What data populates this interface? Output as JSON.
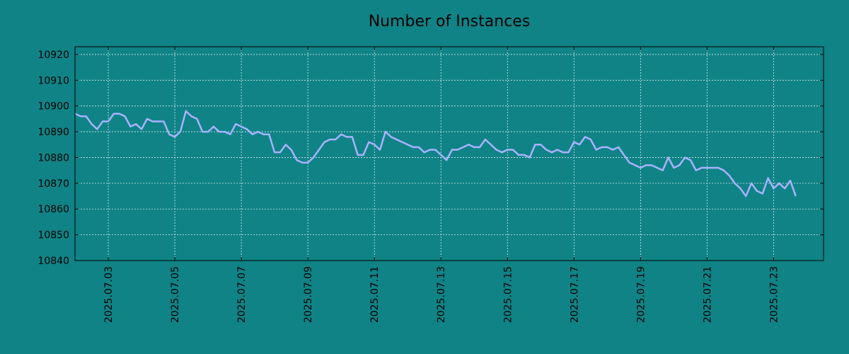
{
  "chart_data": {
    "type": "line",
    "title": "Number of Instances",
    "xlabel": "",
    "ylabel": "",
    "ylim": [
      10840,
      10923
    ],
    "xlim": [
      "2025.07.02 00:00",
      "2025.07.24 12:00"
    ],
    "grid": true,
    "yticks": [
      10840,
      10850,
      10860,
      10870,
      10880,
      10890,
      10900,
      10910,
      10920
    ],
    "xticks": [
      "2025.07.03",
      "2025.07.05",
      "2025.07.07",
      "2025.07.09",
      "2025.07.11",
      "2025.07.13",
      "2025.07.15",
      "2025.07.17",
      "2025.07.19",
      "2025.07.21",
      "2025.07.23"
    ],
    "series": [
      {
        "color": "#a7b3ff",
        "points": [
          [
            "2025.07.02 00:00",
            10897
          ],
          [
            "2025.07.02 04:00",
            10896
          ],
          [
            "2025.07.02 08:00",
            10896
          ],
          [
            "2025.07.02 12:00",
            10893
          ],
          [
            "2025.07.02 16:00",
            10891
          ],
          [
            "2025.07.02 20:00",
            10894
          ],
          [
            "2025.07.03 00:00",
            10894
          ],
          [
            "2025.07.03 04:00",
            10897
          ],
          [
            "2025.07.03 08:00",
            10897
          ],
          [
            "2025.07.03 12:00",
            10896
          ],
          [
            "2025.07.03 16:00",
            10892
          ],
          [
            "2025.07.03 20:00",
            10893
          ],
          [
            "2025.07.04 00:00",
            10891
          ],
          [
            "2025.07.04 04:00",
            10895
          ],
          [
            "2025.07.04 08:00",
            10894
          ],
          [
            "2025.07.04 12:00",
            10894
          ],
          [
            "2025.07.04 16:00",
            10894
          ],
          [
            "2025.07.04 20:00",
            10889
          ],
          [
            "2025.07.05 00:00",
            10888
          ],
          [
            "2025.07.05 04:00",
            10890
          ],
          [
            "2025.07.05 08:00",
            10898
          ],
          [
            "2025.07.05 12:00",
            10896
          ],
          [
            "2025.07.05 16:00",
            10895
          ],
          [
            "2025.07.05 20:00",
            10890
          ],
          [
            "2025.07.06 00:00",
            10890
          ],
          [
            "2025.07.06 04:00",
            10892
          ],
          [
            "2025.07.06 08:00",
            10890
          ],
          [
            "2025.07.06 12:00",
            10890
          ],
          [
            "2025.07.06 16:00",
            10889
          ],
          [
            "2025.07.06 20:00",
            10893
          ],
          [
            "2025.07.07 00:00",
            10892
          ],
          [
            "2025.07.07 04:00",
            10891
          ],
          [
            "2025.07.07 08:00",
            10889
          ],
          [
            "2025.07.07 12:00",
            10890
          ],
          [
            "2025.07.07 16:00",
            10889
          ],
          [
            "2025.07.07 20:00",
            10889
          ],
          [
            "2025.07.08 00:00",
            10882
          ],
          [
            "2025.07.08 04:00",
            10882
          ],
          [
            "2025.07.08 08:00",
            10885
          ],
          [
            "2025.07.08 12:00",
            10883
          ],
          [
            "2025.07.08 16:00",
            10879
          ],
          [
            "2025.07.08 20:00",
            10878
          ],
          [
            "2025.07.09 00:00",
            10878
          ],
          [
            "2025.07.09 04:00",
            10880
          ],
          [
            "2025.07.09 08:00",
            10883
          ],
          [
            "2025.07.09 12:00",
            10886
          ],
          [
            "2025.07.09 16:00",
            10887
          ],
          [
            "2025.07.09 20:00",
            10887
          ],
          [
            "2025.07.10 00:00",
            10889
          ],
          [
            "2025.07.10 04:00",
            10888
          ],
          [
            "2025.07.10 08:00",
            10888
          ],
          [
            "2025.07.10 12:00",
            10881
          ],
          [
            "2025.07.10 16:00",
            10881
          ],
          [
            "2025.07.10 20:00",
            10886
          ],
          [
            "2025.07.11 00:00",
            10885
          ],
          [
            "2025.07.11 04:00",
            10883
          ],
          [
            "2025.07.11 08:00",
            10890
          ],
          [
            "2025.07.11 12:00",
            10888
          ],
          [
            "2025.07.11 16:00",
            10887
          ],
          [
            "2025.07.11 20:00",
            10886
          ],
          [
            "2025.07.12 00:00",
            10885
          ],
          [
            "2025.07.12 04:00",
            10884
          ],
          [
            "2025.07.12 08:00",
            10884
          ],
          [
            "2025.07.12 12:00",
            10882
          ],
          [
            "2025.07.12 16:00",
            10883
          ],
          [
            "2025.07.12 20:00",
            10883
          ],
          [
            "2025.07.13 00:00",
            10881
          ],
          [
            "2025.07.13 04:00",
            10879
          ],
          [
            "2025.07.13 08:00",
            10883
          ],
          [
            "2025.07.13 12:00",
            10883
          ],
          [
            "2025.07.13 16:00",
            10884
          ],
          [
            "2025.07.13 20:00",
            10885
          ],
          [
            "2025.07.14 00:00",
            10884
          ],
          [
            "2025.07.14 04:00",
            10884
          ],
          [
            "2025.07.14 08:00",
            10887
          ],
          [
            "2025.07.14 12:00",
            10885
          ],
          [
            "2025.07.14 16:00",
            10883
          ],
          [
            "2025.07.14 20:00",
            10882
          ],
          [
            "2025.07.15 00:00",
            10883
          ],
          [
            "2025.07.15 04:00",
            10883
          ],
          [
            "2025.07.15 08:00",
            10881
          ],
          [
            "2025.07.15 12:00",
            10881
          ],
          [
            "2025.07.15 16:00",
            10880
          ],
          [
            "2025.07.15 20:00",
            10885
          ],
          [
            "2025.07.16 00:00",
            10885
          ],
          [
            "2025.07.16 04:00",
            10883
          ],
          [
            "2025.07.16 08:00",
            10882
          ],
          [
            "2025.07.16 12:00",
            10883
          ],
          [
            "2025.07.16 16:00",
            10882
          ],
          [
            "2025.07.16 20:00",
            10882
          ],
          [
            "2025.07.17 00:00",
            10886
          ],
          [
            "2025.07.17 04:00",
            10885
          ],
          [
            "2025.07.17 08:00",
            10888
          ],
          [
            "2025.07.17 12:00",
            10887
          ],
          [
            "2025.07.17 16:00",
            10883
          ],
          [
            "2025.07.17 20:00",
            10884
          ],
          [
            "2025.07.18 00:00",
            10884
          ],
          [
            "2025.07.18 04:00",
            10883
          ],
          [
            "2025.07.18 08:00",
            10884
          ],
          [
            "2025.07.18 12:00",
            10881
          ],
          [
            "2025.07.18 16:00",
            10878
          ],
          [
            "2025.07.18 20:00",
            10877
          ],
          [
            "2025.07.19 00:00",
            10876
          ],
          [
            "2025.07.19 04:00",
            10877
          ],
          [
            "2025.07.19 08:00",
            10877
          ],
          [
            "2025.07.19 12:00",
            10876
          ],
          [
            "2025.07.19 16:00",
            10875
          ],
          [
            "2025.07.19 20:00",
            10880
          ],
          [
            "2025.07.20 00:00",
            10876
          ],
          [
            "2025.07.20 04:00",
            10877
          ],
          [
            "2025.07.20 08:00",
            10880
          ],
          [
            "2025.07.20 12:00",
            10879
          ],
          [
            "2025.07.20 16:00",
            10875
          ],
          [
            "2025.07.20 20:00",
            10876
          ],
          [
            "2025.07.21 00:00",
            10876
          ],
          [
            "2025.07.21 04:00",
            10876
          ],
          [
            "2025.07.21 08:00",
            10876
          ],
          [
            "2025.07.21 12:00",
            10875
          ],
          [
            "2025.07.21 16:00",
            10873
          ],
          [
            "2025.07.21 20:00",
            10870
          ],
          [
            "2025.07.22 00:00",
            10868
          ],
          [
            "2025.07.22 04:00",
            10865
          ],
          [
            "2025.07.22 08:00",
            10870
          ],
          [
            "2025.07.22 12:00",
            10867
          ],
          [
            "2025.07.22 16:00",
            10866
          ],
          [
            "2025.07.22 20:00",
            10872
          ],
          [
            "2025.07.23 00:00",
            10868
          ],
          [
            "2025.07.23 04:00",
            10870
          ],
          [
            "2025.07.23 08:00",
            10868
          ],
          [
            "2025.07.23 12:00",
            10871
          ],
          [
            "2025.07.23 16:00",
            10865
          ]
        ]
      }
    ],
    "colors": {
      "background": "#108386",
      "line": "#a7b3ff",
      "grid": "#d9ecec",
      "axis": "#000000"
    }
  }
}
